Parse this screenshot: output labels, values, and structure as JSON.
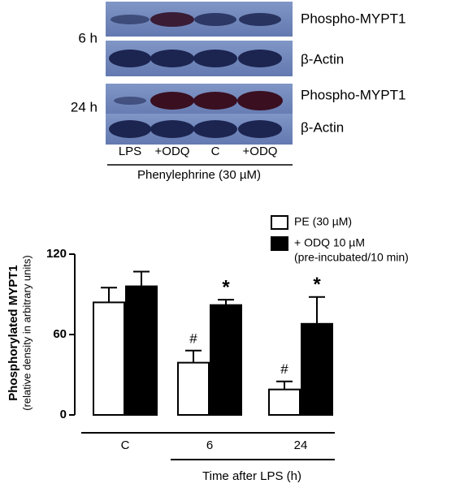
{
  "blot": {
    "time_labels": [
      "6 h",
      "24 h"
    ],
    "rows": [
      "Phospho-MYPT1",
      "β-Actin",
      "Phospho-MYPT1",
      "β-Actin"
    ],
    "lanes": [
      "LPS",
      "+ODQ",
      "C",
      "+ODQ"
    ],
    "treatment": "Phenylephrine (30 µM)"
  },
  "chart_data": {
    "type": "bar",
    "y_label": "Phosphorylated MYPT1",
    "y_sublabel": "(relative density in arbitrary units)",
    "x_label": "Time after LPS (h)",
    "categories": [
      "C",
      "6",
      "24"
    ],
    "series": [
      {
        "name": "PE (30 µM)",
        "color": "#ffffff",
        "values": [
          84,
          39,
          19
        ],
        "errors": [
          11,
          9,
          6
        ],
        "marks": [
          null,
          "#",
          "#"
        ]
      },
      {
        "name": "+ ODQ 10 µM",
        "name_note": "(pre-incubated/10 min)",
        "color": "#000000",
        "values": [
          96,
          82,
          68
        ],
        "errors": [
          11,
          4,
          20
        ],
        "marks": [
          null,
          "*",
          "*"
        ]
      }
    ],
    "ylim": [
      0,
      120
    ],
    "yticks": [
      0,
      60,
      120
    ]
  }
}
